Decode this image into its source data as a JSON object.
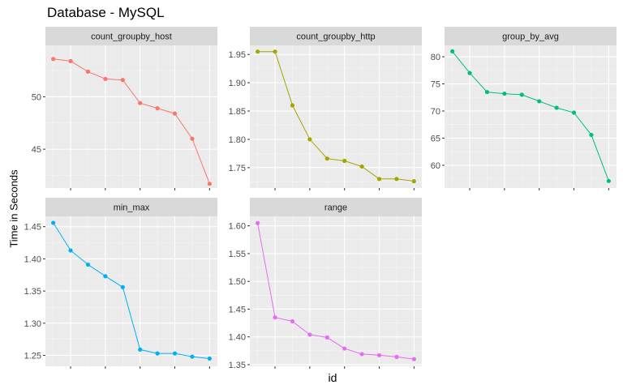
{
  "chart_data": {
    "type": "line",
    "title": "Database - MySQL",
    "xlabel": "id",
    "ylabel": "Time in Seconds",
    "grid": true,
    "legend": "none",
    "facets": [
      {
        "name": "count_groupby_host",
        "color": "#F8766D",
        "y_ticks": [
          45,
          50
        ],
        "ylim": [
          41.3,
          54.9
        ],
        "x": [
          1,
          2,
          3,
          4,
          5,
          6,
          7,
          8,
          9,
          10
        ],
        "values": [
          53.6,
          53.4,
          52.4,
          51.7,
          51.6,
          49.4,
          48.9,
          48.4,
          46.0,
          41.7
        ]
      },
      {
        "name": "count_groupby_http",
        "color": "#A3A500",
        "y_ticks": [
          1.75,
          1.8,
          1.85,
          1.9,
          1.95
        ],
        "ylim": [
          1.714,
          1.966
        ],
        "x": [
          1,
          2,
          3,
          4,
          5,
          6,
          7,
          8,
          9,
          10
        ],
        "values": [
          1.955,
          1.955,
          1.86,
          1.8,
          1.766,
          1.762,
          1.752,
          1.73,
          1.73,
          1.726
        ]
      },
      {
        "name": "group_by_avg",
        "color": "#00BF7D",
        "y_ticks": [
          60,
          65,
          70,
          75,
          80
        ],
        "ylim": [
          55.8,
          82.1
        ],
        "x": [
          1,
          2,
          3,
          4,
          5,
          6,
          7,
          8,
          9,
          10
        ],
        "values": [
          81.0,
          77.0,
          73.5,
          73.2,
          73.0,
          71.8,
          70.6,
          69.7,
          65.6,
          57.1
        ]
      },
      {
        "name": "min_max",
        "color": "#00B0F6",
        "y_ticks": [
          1.25,
          1.3,
          1.35,
          1.4,
          1.45
        ],
        "ylim": [
          1.233,
          1.466
        ],
        "x": [
          1,
          2,
          3,
          4,
          5,
          6,
          7,
          8,
          9,
          10
        ],
        "values": [
          1.456,
          1.413,
          1.391,
          1.373,
          1.356,
          1.259,
          1.253,
          1.253,
          1.248,
          1.245
        ]
      },
      {
        "name": "range",
        "color": "#E76BF3",
        "y_ticks": [
          1.35,
          1.4,
          1.45,
          1.5,
          1.55,
          1.6
        ],
        "ylim": [
          1.347,
          1.617
        ],
        "x": [
          1,
          2,
          3,
          4,
          5,
          6,
          7,
          8,
          9,
          10
        ],
        "values": [
          1.605,
          1.435,
          1.428,
          1.404,
          1.399,
          1.379,
          1.369,
          1.367,
          1.364,
          1.36
        ]
      }
    ]
  }
}
